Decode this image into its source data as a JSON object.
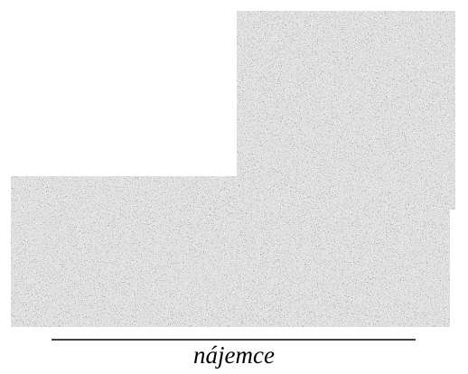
{
  "signature": {
    "role": "nájemce"
  }
}
